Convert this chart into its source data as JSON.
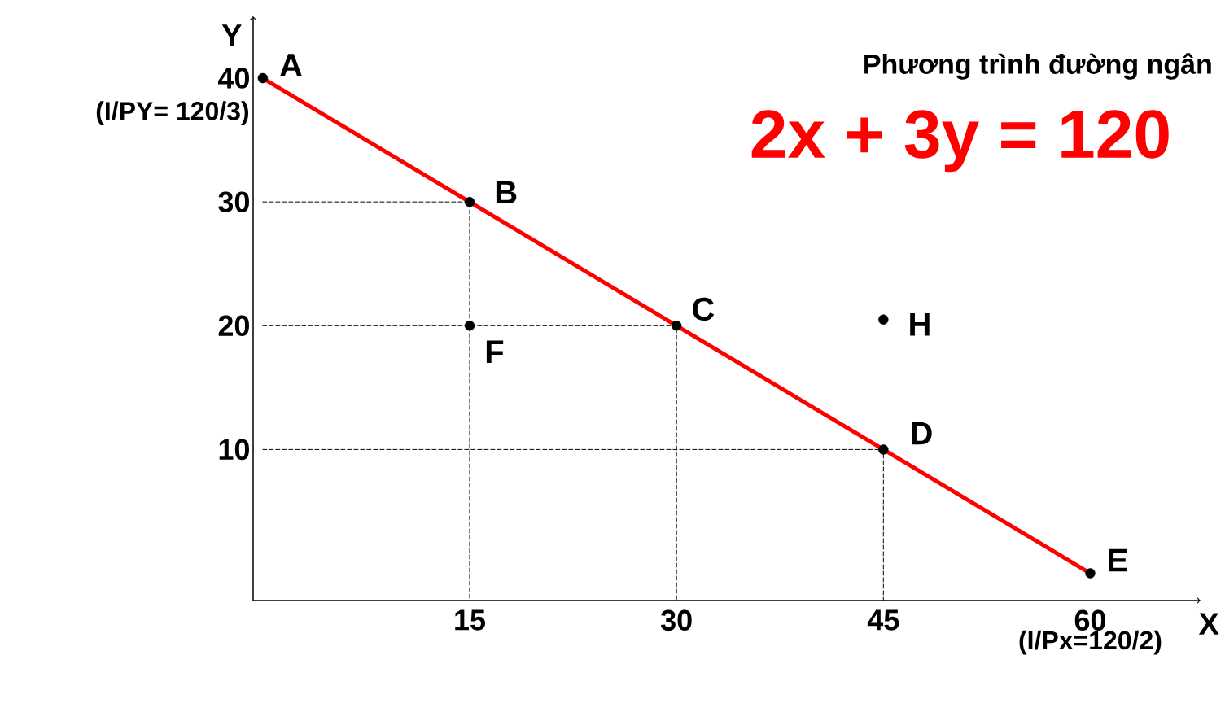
{
  "chart_data": {
    "type": "line",
    "title": "Phương trình đường ngân",
    "subtitle": "2x + 3y = 120",
    "xlabel": "X",
    "ylabel": "Y",
    "xlim": [
      -0.7,
      68
    ],
    "ylim": [
      -2.2,
      45
    ],
    "xticks": [
      15,
      30,
      45,
      60
    ],
    "yticks": [
      10,
      20,
      30,
      40
    ],
    "grid": false,
    "series": [
      {
        "color": "#ff0000",
        "x": [
          0,
          60
        ],
        "values": [
          40,
          0
        ]
      },
      {
        "color": "#000000",
        "line_style": "dashed",
        "x": [
          0,
          15,
          15
        ],
        "values": [
          30,
          30,
          -2.2
        ]
      },
      {
        "color": "#000000",
        "line_style": "dashed",
        "x": [
          0,
          30,
          30
        ],
        "values": [
          20,
          20,
          -2.2
        ]
      },
      {
        "color": "#000000",
        "line_style": "dashed",
        "x": [
          0,
          45,
          45
        ],
        "values": [
          10,
          10,
          -2.2
        ]
      },
      {
        "type": "scatter",
        "color": "#000000",
        "marker": "circle",
        "x": [
          0,
          15,
          30,
          45,
          60,
          15,
          45
        ],
        "values": [
          40,
          30,
          20,
          10,
          0,
          20,
          20.5
        ]
      }
    ],
    "annotations": [
      {
        "text": "A",
        "x": 0,
        "y": 40
      },
      {
        "text": "B",
        "x": 15,
        "y": 30
      },
      {
        "text": "C",
        "x": 30,
        "y": 20
      },
      {
        "text": "D",
        "x": 45,
        "y": 10
      },
      {
        "text": "E",
        "x": 60,
        "y": 0
      },
      {
        "text": "F",
        "x": 15,
        "y": 20
      },
      {
        "text": "H",
        "x": 45,
        "y": 20.5
      },
      {
        "text": "(I/PY= 120/3)",
        "x": 0,
        "y": 40
      },
      {
        "text": "(I/Px=120/2)",
        "x": 60,
        "y": 0
      }
    ]
  }
}
